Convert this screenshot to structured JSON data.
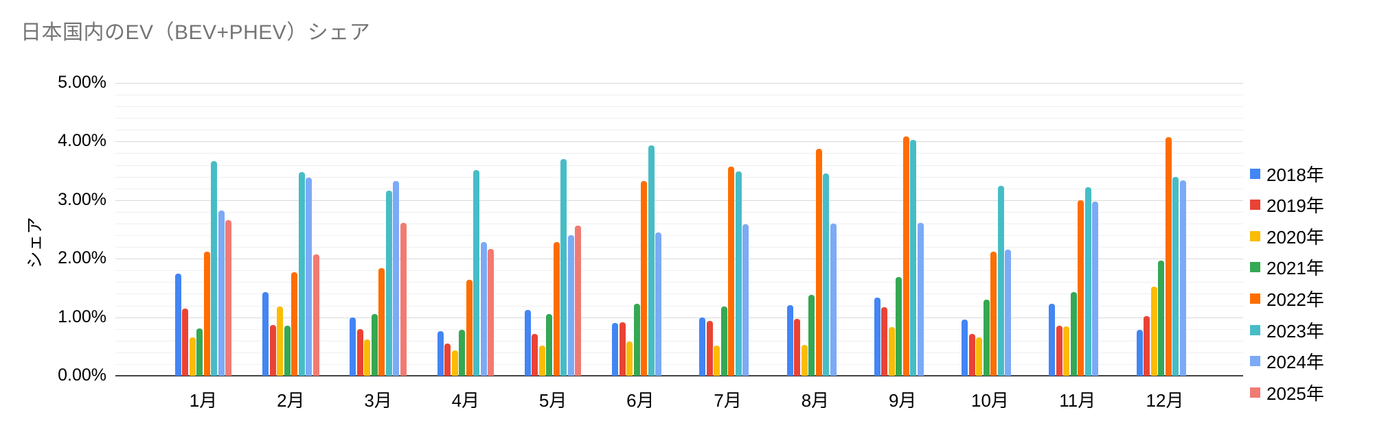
{
  "title": "日本国内のEV（BEV+PHEV）シェア",
  "chart_data": {
    "type": "bar",
    "title": "日本国内のEV（BEV+PHEV）シェア",
    "xlabel": "",
    "ylabel": "シェア",
    "ylim": [
      0,
      5
    ],
    "y_tick_labels": [
      "0.00%",
      "1.00%",
      "2.00%",
      "3.00%",
      "4.00%",
      "5.00%"
    ],
    "minor_grid_step_pct": 0.2,
    "grid": true,
    "legend_position": "right",
    "categories": [
      "1月",
      "2月",
      "3月",
      "4月",
      "5月",
      "6月",
      "7月",
      "8月",
      "9月",
      "10月",
      "11月",
      "12月"
    ],
    "series": [
      {
        "name": "2018年",
        "color": "#4285F4",
        "values": [
          1.75,
          1.43,
          1.0,
          0.76,
          1.12,
          0.9,
          1.0,
          1.21,
          1.34,
          0.96,
          1.23,
          0.79
        ]
      },
      {
        "name": "2019年",
        "color": "#EA4335",
        "values": [
          1.15,
          0.87,
          0.8,
          0.55,
          0.72,
          0.91,
          0.94,
          0.97,
          1.17,
          0.72,
          0.86,
          1.02
        ]
      },
      {
        "name": "2020年",
        "color": "#FBBC04",
        "values": [
          0.65,
          1.18,
          0.62,
          0.43,
          0.51,
          0.59,
          0.51,
          0.53,
          0.83,
          0.66,
          0.84,
          1.52
        ]
      },
      {
        "name": "2021年",
        "color": "#34A853",
        "values": [
          0.81,
          0.86,
          1.05,
          0.79,
          1.05,
          1.23,
          1.18,
          1.38,
          1.69,
          1.3,
          1.43,
          1.97
        ]
      },
      {
        "name": "2022年",
        "color": "#FF6D01",
        "values": [
          2.12,
          1.77,
          1.84,
          1.64,
          2.28,
          3.32,
          3.57,
          3.88,
          4.09,
          2.12,
          3.0,
          4.08
        ]
      },
      {
        "name": "2023年",
        "color": "#46BDC6",
        "values": [
          3.67,
          3.48,
          3.16,
          3.51,
          3.7,
          3.93,
          3.49,
          3.46,
          4.03,
          3.24,
          3.22,
          3.39
        ]
      },
      {
        "name": "2024年",
        "color": "#7BAAF7",
        "values": [
          2.82,
          3.38,
          3.33,
          2.28,
          2.4,
          2.45,
          2.59,
          2.6,
          2.61,
          2.16,
          2.98,
          3.34
        ]
      },
      {
        "name": "2025年",
        "color": "#F07B72",
        "values": [
          2.66,
          2.07,
          2.61,
          2.17,
          2.56,
          null,
          null,
          null,
          null,
          null,
          null,
          null
        ]
      }
    ]
  }
}
